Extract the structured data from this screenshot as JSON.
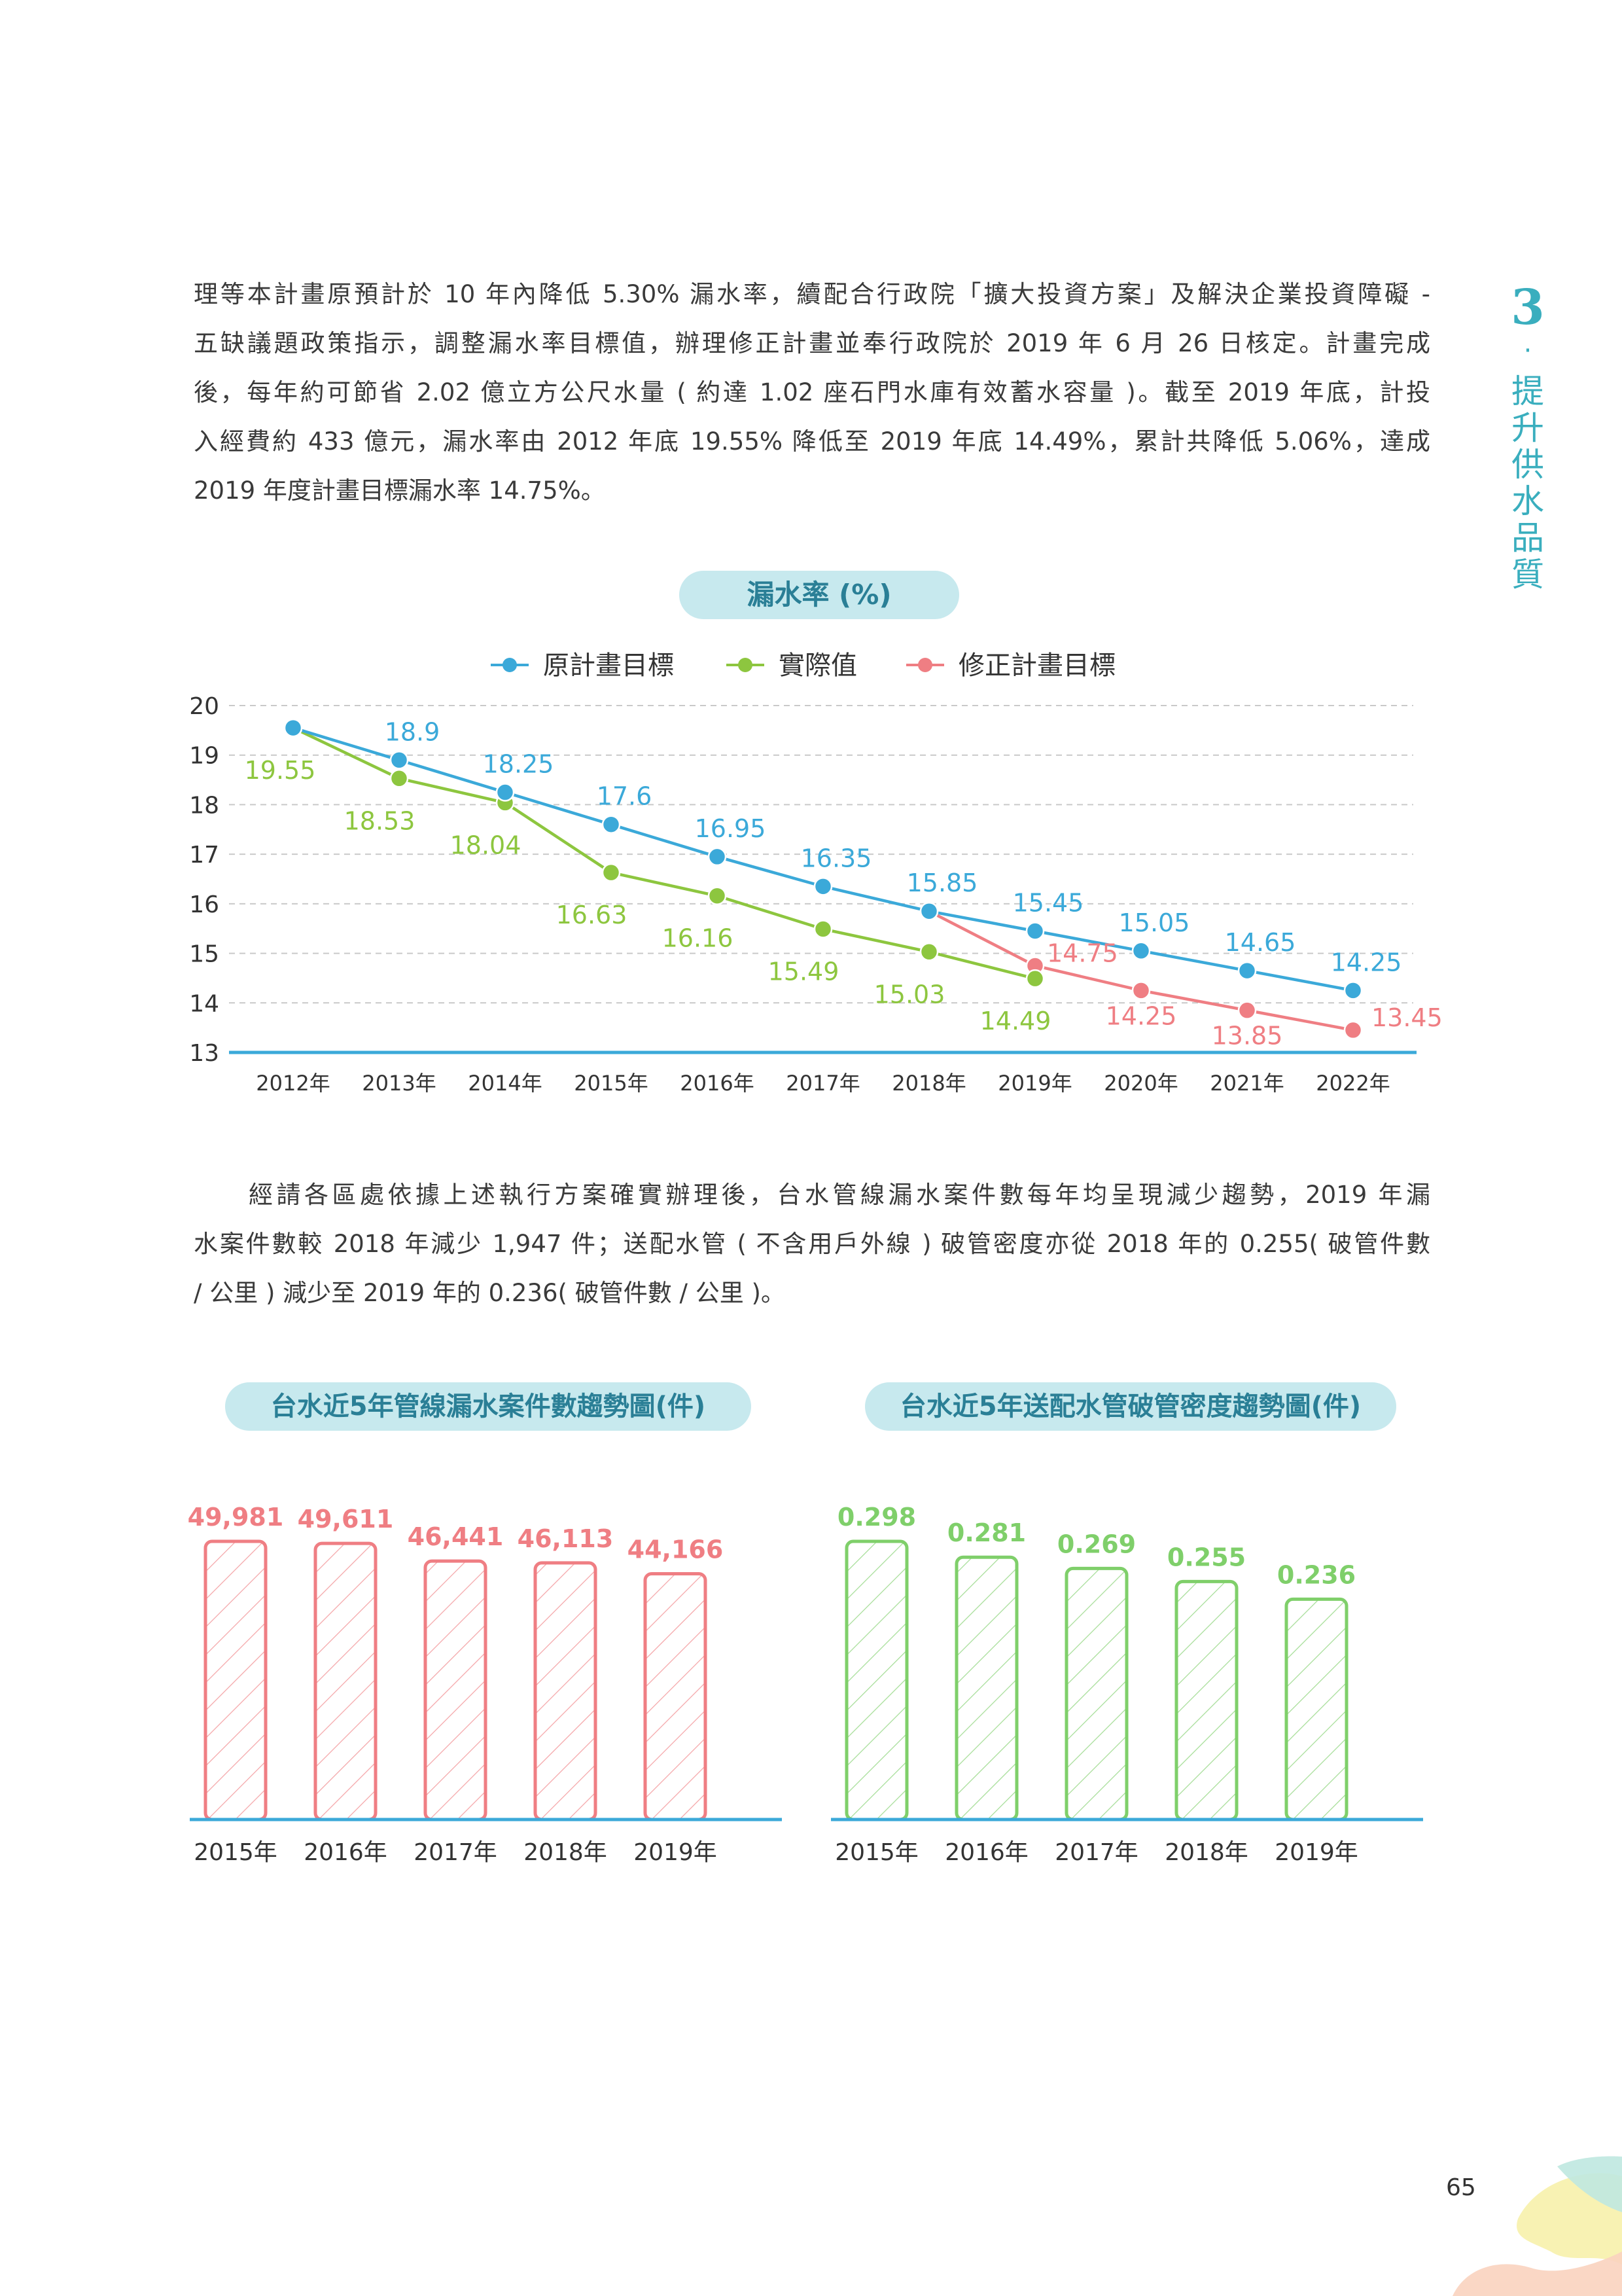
{
  "paragraph1": {
    "lines": [
      "理等本計畫原預計於 10 年內降低 5.30% 漏水率，續配合行政院「擴大投資方案」及解決企業投資障礙 -",
      "五缺議題政策指示，調整漏水率目標值，辦理修正計畫並奉行政院於 2019 年 6 月 26 日核定。計畫完成",
      "後，每年約可節省 2.02 億立方公尺水量 ( 約達 1.02 座石門水庫有效蓄水容量 )。截至 2019 年底，計投",
      "入經費約 433 億元，漏水率由 2012 年底 19.55% 降低至 2019 年底 14.49%，累計共降低 5.06%，達成",
      "2019 年度計畫目標漏水率 14.75%。"
    ]
  },
  "paragraph2": {
    "lines": [
      "經請各區處依據上述執行方案確實辦理後，台水管線漏水案件數每年均呈現減少趨勢，2019 年漏",
      "水案件數較 2018 年減少 1,947 件；送配水管 ( 不含用戶外線 ) 破管密度亦從 2018 年的 0.255( 破管件數",
      "/ 公里 ) 減少至 2019 年的 0.236( 破管件數 / 公里 )。"
    ]
  },
  "chapter": {
    "number": "3",
    "dot": "·",
    "title_chars": [
      "提",
      "升",
      "供",
      "水",
      "品",
      "質"
    ]
  },
  "page_number": "65",
  "colors": {
    "blue": "#3ba9d9",
    "green": "#8dc63f",
    "red": "#ef7e83",
    "bar_red": "#ef7e83",
    "bar_green": "#7fcf6a",
    "axis": "#3ba9d9",
    "pill_bg": "#c7e9ee",
    "pill_text": "#2a7f96",
    "chapter": "#3aaebe"
  },
  "chart_data": [
    {
      "type": "line",
      "title": "漏水率 (%)",
      "categories": [
        "2012年",
        "2013年",
        "2014年",
        "2015年",
        "2016年",
        "2017年",
        "2018年",
        "2019年",
        "2020年",
        "2021年",
        "2022年"
      ],
      "ylim": [
        13,
        20
      ],
      "yticks": [
        "13",
        "14",
        "15",
        "16",
        "17",
        "18",
        "19",
        "20"
      ],
      "grid": true,
      "legend": "top",
      "series": [
        {
          "name": "原計畫目標",
          "color": "#3ba9d9",
          "values": [
            19.55,
            18.9,
            18.25,
            17.6,
            16.95,
            16.35,
            15.85,
            15.45,
            15.05,
            14.65,
            14.25
          ],
          "labels": [
            "",
            "18.9",
            "18.25",
            "17.6",
            "16.95",
            "16.35",
            "15.85",
            "15.45",
            "15.05",
            "14.65",
            "14.25"
          ]
        },
        {
          "name": "實際值",
          "color": "#8dc63f",
          "values": [
            19.55,
            18.53,
            18.04,
            16.63,
            16.16,
            15.49,
            15.03,
            14.49,
            null,
            null,
            null
          ],
          "labels": [
            "19.55",
            "18.53",
            "18.04",
            "16.63",
            "16.16",
            "15.49",
            "15.03",
            "14.49",
            "",
            "",
            ""
          ]
        },
        {
          "name": "修正計畫目標",
          "color": "#ef7e83",
          "values": [
            null,
            null,
            null,
            null,
            null,
            null,
            15.85,
            14.75,
            14.25,
            13.85,
            13.45
          ],
          "labels": [
            "",
            "",
            "",
            "",
            "",
            "",
            "",
            "14.75",
            "14.25",
            "13.85",
            "13.45"
          ]
        }
      ]
    },
    {
      "type": "bar",
      "title": "台水近5年管線漏水案件數趨勢圖(件)",
      "categories": [
        "2015年",
        "2016年",
        "2017年",
        "2018年",
        "2019年"
      ],
      "values": [
        49981,
        49611,
        46441,
        46113,
        44166
      ],
      "value_labels": [
        "49,981",
        "49,611",
        "46,441",
        "46,113",
        "44,166"
      ],
      "color": "#ef7e83"
    },
    {
      "type": "bar",
      "title": "台水近5年送配水管破管密度趨勢圖(件)",
      "categories": [
        "2015年",
        "2016年",
        "2017年",
        "2018年",
        "2019年"
      ],
      "values": [
        0.298,
        0.281,
        0.269,
        0.255,
        0.236
      ],
      "value_labels": [
        "0.298",
        "0.281",
        "0.269",
        "0.255",
        "0.236"
      ],
      "color": "#7fcf6a"
    }
  ]
}
